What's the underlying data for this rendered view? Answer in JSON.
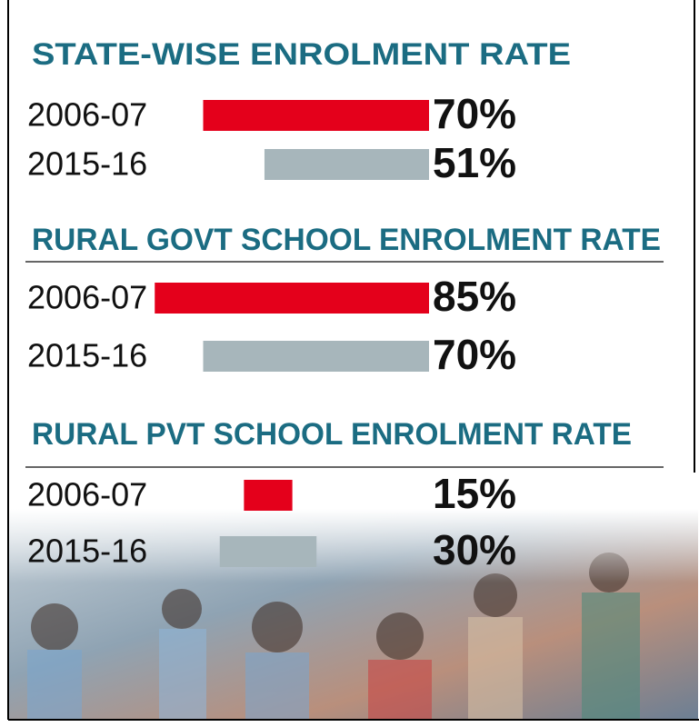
{
  "chart_data": [
    {
      "type": "bar",
      "title": "STATE-WISE ENROLMENT RATE",
      "categories": [
        "2006-07",
        "2015-16"
      ],
      "values": [
        70,
        51
      ],
      "value_labels": [
        "70%",
        "51%"
      ],
      "colors": [
        "#e4001b",
        "#a7b6bb"
      ]
    },
    {
      "type": "bar",
      "title": "RURAL GOVT SCHOOL ENROLMENT RATE",
      "categories": [
        "2006-07",
        "2015-16"
      ],
      "values": [
        85,
        70
      ],
      "value_labels": [
        "85%",
        "70%"
      ],
      "colors": [
        "#e4001b",
        "#a7b6bb"
      ]
    },
    {
      "type": "bar",
      "title": "RURAL PVT SCHOOL ENROLMENT RATE",
      "categories": [
        "2006-07",
        "2015-16"
      ],
      "values": [
        15,
        30
      ],
      "value_labels": [
        "15%",
        "30%"
      ],
      "colors": [
        "#e4001b",
        "#a7b6bb"
      ]
    }
  ]
}
